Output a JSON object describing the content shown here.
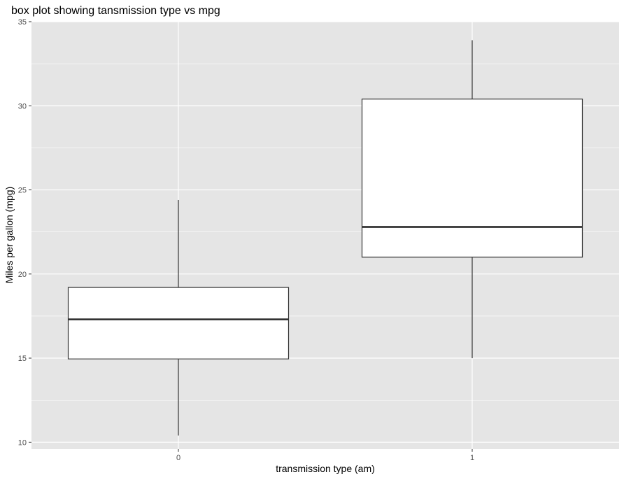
{
  "chart_data": {
    "type": "boxplot",
    "title": "box plot showing tansmission type vs mpg",
    "xlabel": "transmission type (am)",
    "ylabel": "Miles per gallon (mpg)",
    "categories": [
      "0",
      "1"
    ],
    "ylim": [
      9.6,
      35.0
    ],
    "yticks": [
      10,
      15,
      20,
      25,
      30,
      35
    ],
    "grid": true,
    "boxes": [
      {
        "category": "0",
        "whisker_low": 10.4,
        "q1": 14.95,
        "median": 17.3,
        "q3": 19.2,
        "whisker_high": 24.4
      },
      {
        "category": "1",
        "whisker_low": 15.0,
        "q1": 21.0,
        "median": 22.8,
        "q3": 30.4,
        "whisker_high": 33.9
      }
    ],
    "colors": {
      "panel_background": "#e5e5e5",
      "grid": "#ffffff",
      "box_fill": "#ffffff",
      "box_stroke": "#333333"
    }
  }
}
